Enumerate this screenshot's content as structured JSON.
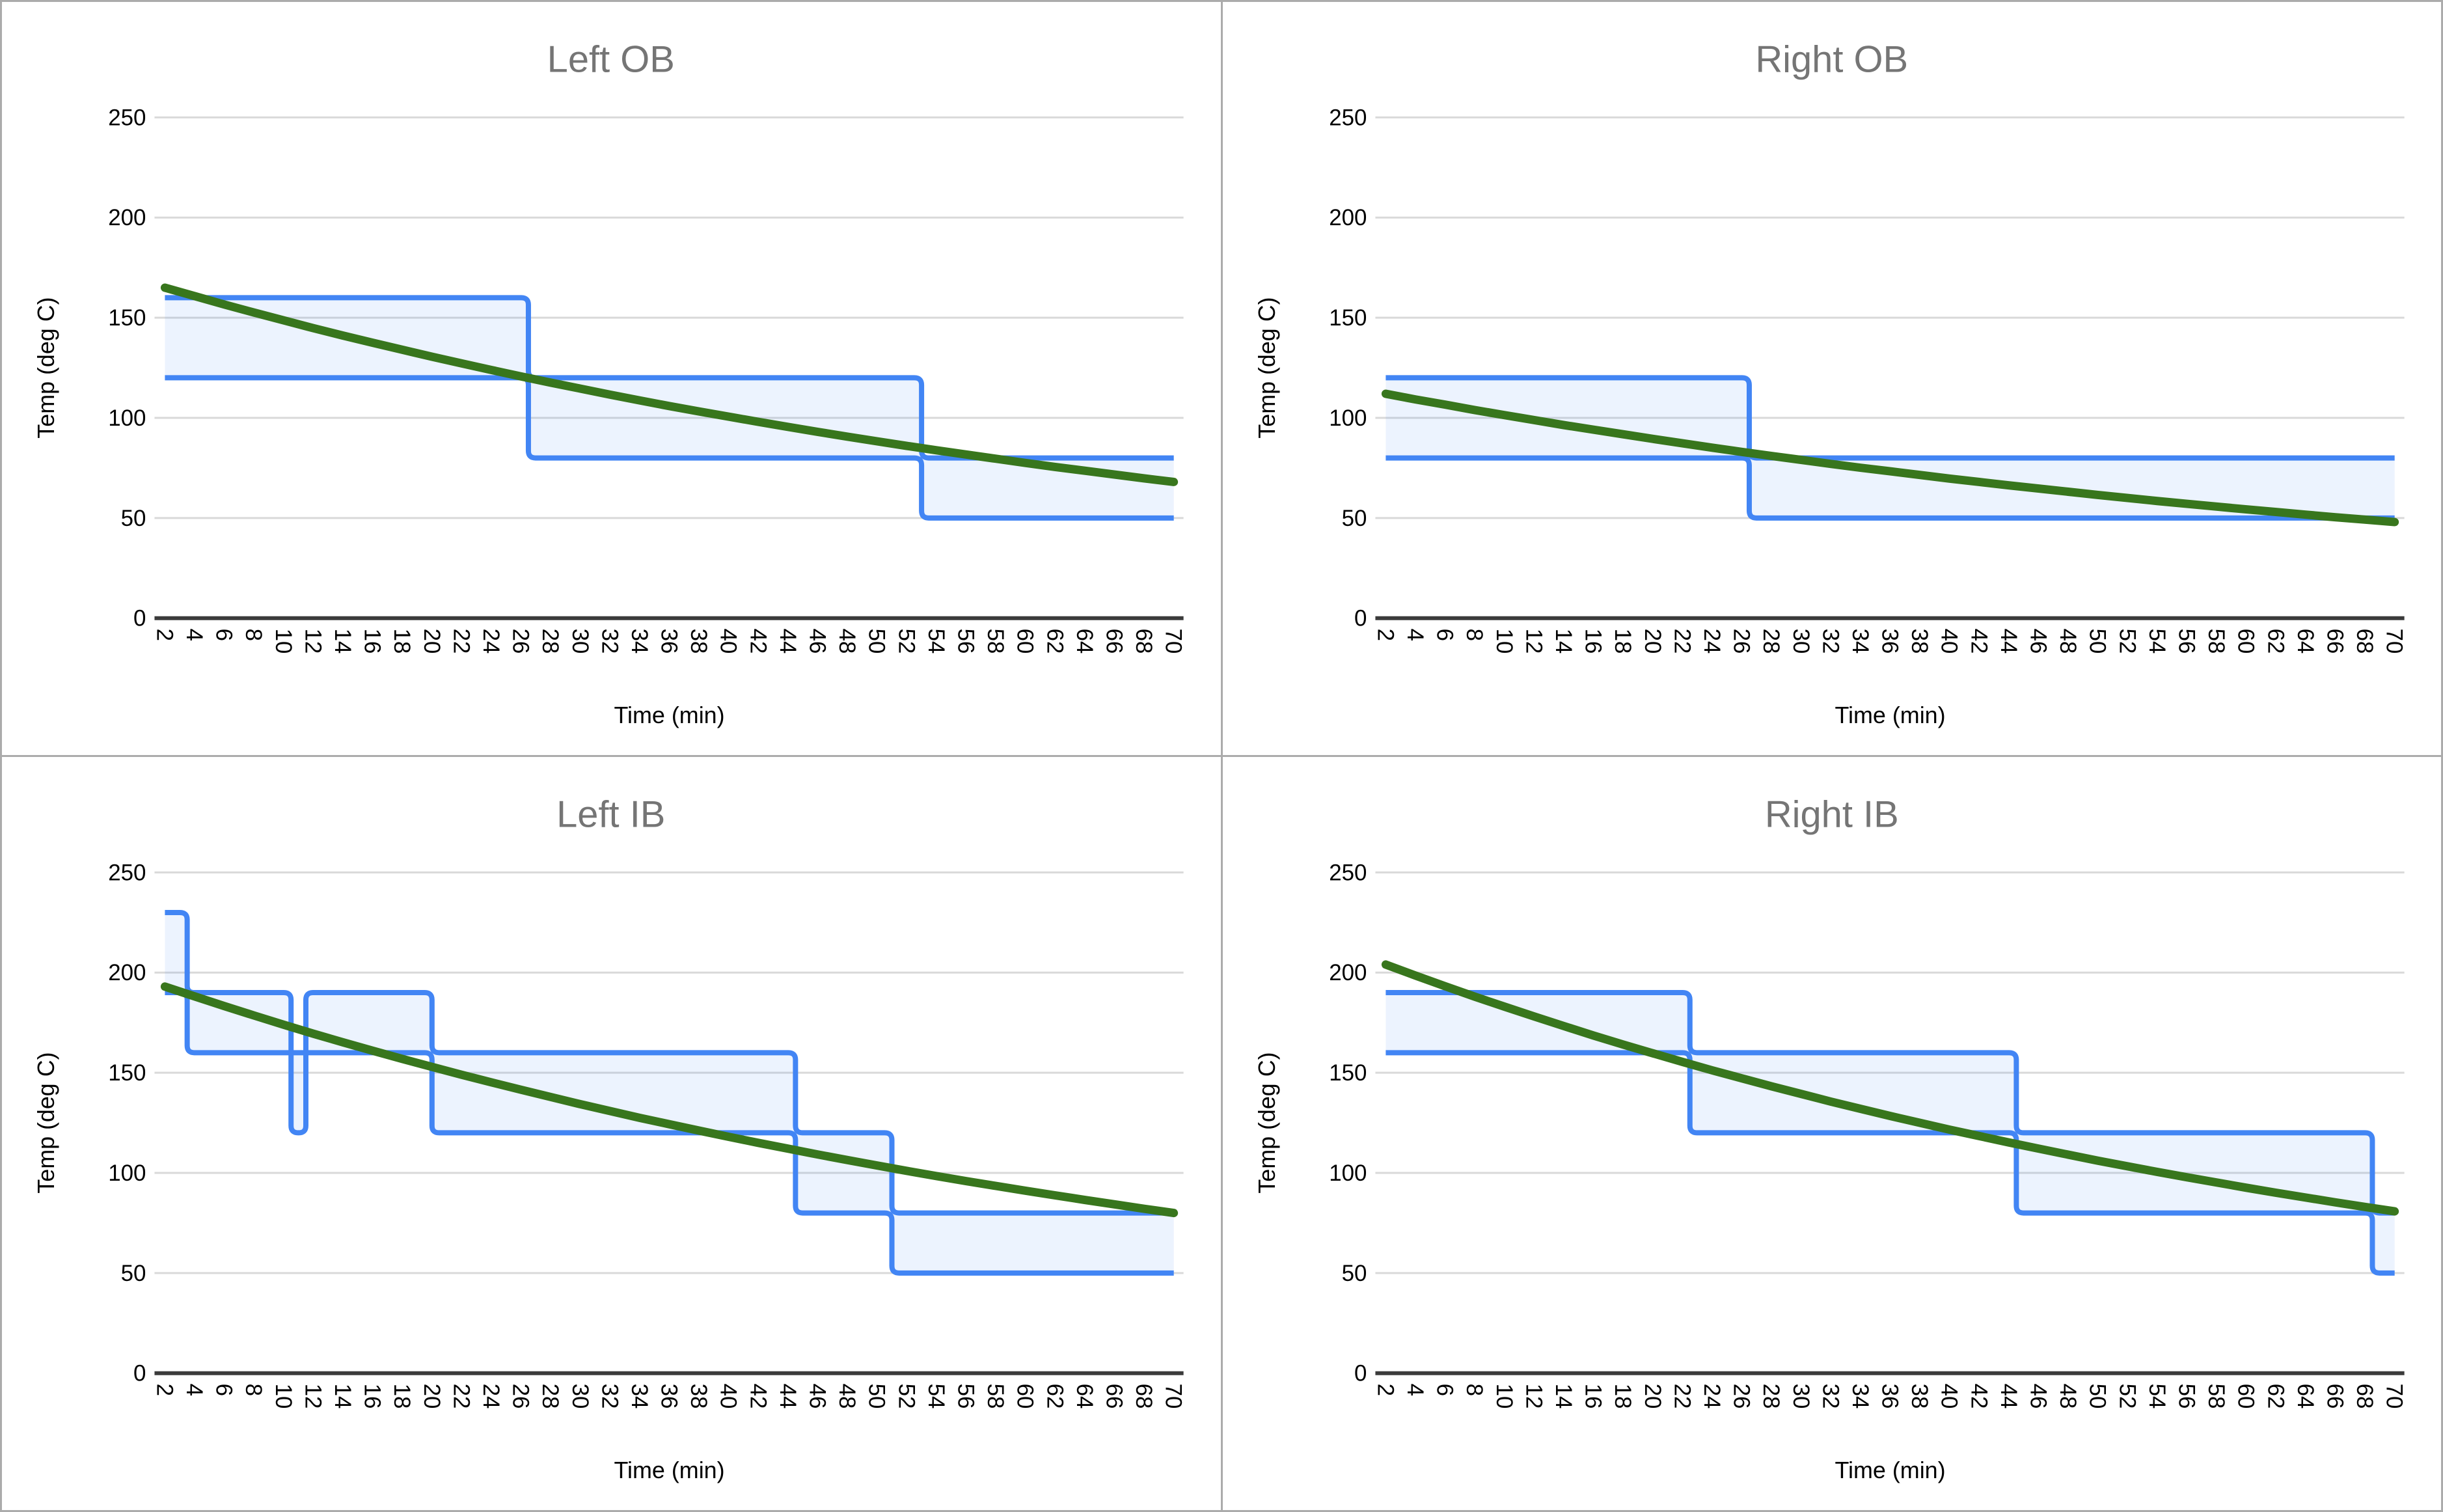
{
  "colors": {
    "band_line": "#4285f4",
    "band_fill": "rgba(66,133,244,0.10)",
    "trend_line": "#38761d",
    "gridline": "#d9d9d9",
    "axis_line": "#3b3b3b",
    "title_text": "#757575",
    "tick_text": "#000000",
    "divider": "#ababab",
    "background": "#ffffff"
  },
  "chart_data": [
    {
      "type": "area",
      "title": "Left OB",
      "xlabel": "Time (min)",
      "ylabel": "Temp (deg C)",
      "xlim": [
        2,
        70
      ],
      "ylim": [
        0,
        260
      ],
      "grid": true,
      "legend": "none",
      "x_ticks": [
        2,
        4,
        6,
        8,
        10,
        12,
        14,
        16,
        18,
        20,
        22,
        24,
        26,
        28,
        30,
        32,
        34,
        36,
        38,
        40,
        42,
        44,
        46,
        48,
        50,
        52,
        54,
        56,
        58,
        60,
        62,
        64,
        66,
        68,
        70
      ],
      "y_ticks": [
        0,
        50,
        100,
        150,
        200,
        250
      ],
      "band_upper_steps": [
        {
          "t": 2,
          "v": 160
        },
        {
          "t": 26.5,
          "v": 120
        },
        {
          "t": 53,
          "v": 80
        }
      ],
      "band_lower_steps": [
        {
          "t": 2,
          "v": 120
        },
        {
          "t": 26.5,
          "v": 80
        },
        {
          "t": 53,
          "v": 50
        }
      ],
      "trend_x": [
        2,
        4,
        6,
        8,
        10,
        12,
        14,
        16,
        18,
        20,
        22,
        24,
        26,
        28,
        30,
        32,
        34,
        36,
        38,
        40,
        42,
        44,
        46,
        48,
        50,
        52,
        54,
        56,
        58,
        60,
        62,
        64,
        66,
        68,
        70
      ],
      "trend_y": [
        165,
        160.8,
        156.6,
        152.6,
        148.7,
        144.8,
        141.1,
        137.5,
        134,
        130.5,
        127.2,
        123.9,
        120.7,
        117.6,
        114.6,
        111.6,
        108.7,
        105.9,
        103.2,
        100.6,
        98,
        95.5,
        93,
        90.6,
        88.3,
        86,
        83.8,
        81.7,
        79.6,
        77.5,
        75.5,
        73.6,
        71.7,
        69.8,
        68
      ]
    },
    {
      "type": "area",
      "title": "Right OB",
      "xlabel": "Time (min)",
      "ylabel": "Temp (deg C)",
      "xlim": [
        2,
        70
      ],
      "ylim": [
        0,
        260
      ],
      "grid": true,
      "legend": "none",
      "x_ticks": [
        2,
        4,
        6,
        8,
        10,
        12,
        14,
        16,
        18,
        20,
        22,
        24,
        26,
        28,
        30,
        32,
        34,
        36,
        38,
        40,
        42,
        44,
        46,
        48,
        50,
        52,
        54,
        56,
        58,
        60,
        62,
        64,
        66,
        68,
        70
      ],
      "y_ticks": [
        0,
        50,
        100,
        150,
        200,
        250
      ],
      "band_upper_steps": [
        {
          "t": 2,
          "v": 120
        },
        {
          "t": 26.5,
          "v": 80
        }
      ],
      "band_lower_steps": [
        {
          "t": 2,
          "v": 80
        },
        {
          "t": 26.5,
          "v": 50
        }
      ],
      "trend_x": [
        2,
        4,
        6,
        8,
        10,
        12,
        14,
        16,
        18,
        20,
        22,
        24,
        26,
        28,
        30,
        32,
        34,
        36,
        38,
        40,
        42,
        44,
        46,
        48,
        50,
        52,
        54,
        56,
        58,
        60,
        62,
        64,
        66,
        68,
        70
      ],
      "trend_y": [
        112,
        109.2,
        106.6,
        103.9,
        101.4,
        98.9,
        96.4,
        94.1,
        91.8,
        89.5,
        87.3,
        85.1,
        83,
        81,
        79,
        77,
        75.1,
        73.3,
        71.5,
        69.7,
        68,
        66.3,
        64.7,
        63.1,
        61.5,
        60,
        58.5,
        57.1,
        55.7,
        54.3,
        53,
        51.7,
        50.4,
        49.2,
        48
      ]
    },
    {
      "type": "area",
      "title": "Left IB",
      "xlabel": "Time (min)",
      "ylabel": "Temp (deg C)",
      "xlim": [
        2,
        70
      ],
      "ylim": [
        0,
        260
      ],
      "grid": true,
      "legend": "none",
      "x_ticks": [
        2,
        4,
        6,
        8,
        10,
        12,
        14,
        16,
        18,
        20,
        22,
        24,
        26,
        28,
        30,
        32,
        34,
        36,
        38,
        40,
        42,
        44,
        46,
        48,
        50,
        52,
        54,
        56,
        58,
        60,
        62,
        64,
        66,
        68,
        70
      ],
      "y_ticks": [
        0,
        50,
        100,
        150,
        200,
        250
      ],
      "band_upper_steps": [
        {
          "t": 2,
          "v": 230
        },
        {
          "t": 3.5,
          "v": 190
        },
        {
          "t": 10.5,
          "v": 120
        },
        {
          "t": 11.5,
          "v": 190
        },
        {
          "t": 20,
          "v": 160
        },
        {
          "t": 44.5,
          "v": 120
        },
        {
          "t": 51,
          "v": 80
        }
      ],
      "band_lower_steps": [
        {
          "t": 2,
          "v": 190
        },
        {
          "t": 3.5,
          "v": 160
        },
        {
          "t": 20,
          "v": 120
        },
        {
          "t": 44.5,
          "v": 80
        },
        {
          "t": 51,
          "v": 50
        }
      ],
      "trend_x": [
        2,
        4,
        6,
        8,
        10,
        12,
        14,
        16,
        18,
        20,
        22,
        24,
        26,
        28,
        30,
        32,
        34,
        36,
        38,
        40,
        42,
        44,
        46,
        48,
        50,
        52,
        54,
        56,
        58,
        60,
        62,
        64,
        66,
        68,
        70
      ],
      "trend_y": [
        193,
        188.1,
        183.3,
        178.6,
        174,
        169.5,
        165.2,
        161,
        156.9,
        152.9,
        149,
        145.2,
        141.5,
        137.9,
        134.3,
        130.9,
        127.5,
        124.3,
        121.1,
        118,
        115,
        112.1,
        109.2,
        106.4,
        103.7,
        101,
        98.4,
        95.9,
        93.5,
        91.1,
        88.8,
        86.5,
        84.3,
        82.1,
        80
      ]
    },
    {
      "type": "area",
      "title": "Right IB",
      "xlabel": "Time (min)",
      "ylabel": "Temp (deg C)",
      "xlim": [
        2,
        70
      ],
      "ylim": [
        0,
        260
      ],
      "grid": true,
      "legend": "none",
      "x_ticks": [
        2,
        4,
        6,
        8,
        10,
        12,
        14,
        16,
        18,
        20,
        22,
        24,
        26,
        28,
        30,
        32,
        34,
        36,
        38,
        40,
        42,
        44,
        46,
        48,
        50,
        52,
        54,
        56,
        58,
        60,
        62,
        64,
        66,
        68,
        70
      ],
      "y_ticks": [
        0,
        50,
        100,
        150,
        200,
        250
      ],
      "band_upper_steps": [
        {
          "t": 2,
          "v": 190
        },
        {
          "t": 22.5,
          "v": 160
        },
        {
          "t": 44.5,
          "v": 120
        },
        {
          "t": 68.5,
          "v": 80
        }
      ],
      "band_lower_steps": [
        {
          "t": 2,
          "v": 160
        },
        {
          "t": 22.5,
          "v": 120
        },
        {
          "t": 44.5,
          "v": 80
        },
        {
          "t": 68.5,
          "v": 50
        }
      ],
      "trend_x": [
        2,
        4,
        6,
        8,
        10,
        12,
        14,
        16,
        18,
        20,
        22,
        24,
        26,
        28,
        30,
        32,
        34,
        36,
        38,
        40,
        42,
        44,
        46,
        48,
        50,
        52,
        54,
        56,
        58,
        60,
        62,
        64,
        66,
        68,
        70
      ],
      "trend_y": [
        204,
        198.5,
        193.2,
        188,
        183,
        178.1,
        173.3,
        168.6,
        164.1,
        159.7,
        155.4,
        151.2,
        147.2,
        143.2,
        139.4,
        135.6,
        132,
        128.4,
        125,
        121.6,
        118.4,
        115.2,
        112.1,
        109.1,
        106.1,
        103.3,
        100.5,
        97.8,
        95.2,
        92.6,
        90.1,
        87.7,
        85.3,
        83,
        80.8
      ]
    }
  ]
}
